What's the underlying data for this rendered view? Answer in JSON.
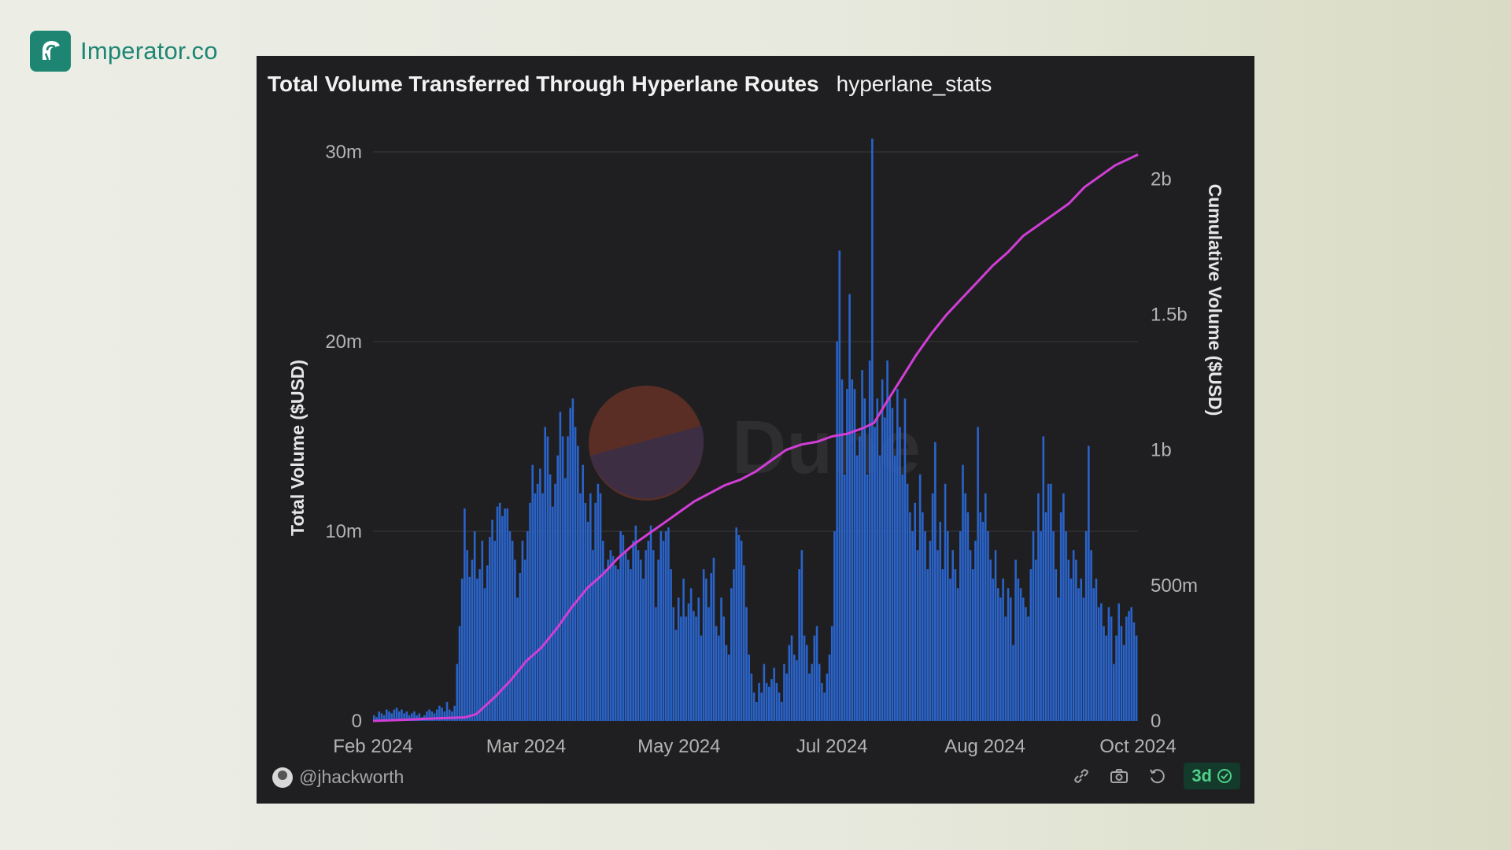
{
  "brand": {
    "name": "Imperator.co",
    "color": "#1e8573"
  },
  "header": {
    "title": "Total Volume Transferred Through Hyperlane Routes",
    "subtitle": "hyperlane_stats"
  },
  "watermark": {
    "text": "Dune"
  },
  "footer": {
    "author": "@jhackworth",
    "refresh_age": "3d",
    "icons": [
      "link-icon",
      "camera-icon",
      "refresh-icon",
      "check-circle-icon"
    ]
  },
  "chart_data": {
    "type": "bar",
    "title": "Total Volume Transferred Through Hyperlane Routes",
    "x_ticks": [
      "Feb 2024",
      "Mar 2024",
      "May 2024",
      "Jul 2024",
      "Aug 2024",
      "Oct 2024"
    ],
    "ylabel": "Total Volume ($USD)",
    "y_ticks": [
      "0",
      "10m",
      "20m",
      "30m"
    ],
    "ylim": [
      0,
      30000000
    ],
    "y2label": "Cumulative Volume ($USD)",
    "y2_ticks": [
      "0",
      "500m",
      "1b",
      "1.5b",
      "2b"
    ],
    "y2lim": [
      0,
      2100000000
    ],
    "grid": true,
    "colors": {
      "bars": "#2a63c9",
      "line": "#d13ed6",
      "grid": "#3a3a3d",
      "tick": "#b3b3b3",
      "axis_label": "#e6e6e6"
    },
    "series": [
      {
        "type": "bar",
        "axis": "left",
        "values": [
          300000,
          200000,
          500000,
          400000,
          300000,
          600000,
          500000,
          400000,
          600000,
          700000,
          500000,
          600000,
          400000,
          500000,
          300000,
          400000,
          500000,
          300000,
          400000,
          200000,
          300000,
          500000,
          600000,
          500000,
          400000,
          600000,
          800000,
          700000,
          500000,
          1000000,
          600000,
          500000,
          800000,
          3000000,
          5000000,
          7500000,
          11200000,
          9000000,
          7600000,
          8500000,
          10000000,
          7500000,
          8000000,
          9500000,
          7000000,
          8200000,
          9700000,
          10600000,
          9500000,
          11300000,
          11500000,
          10800000,
          11200000,
          11200000,
          10000000,
          9500000,
          8500000,
          6500000,
          7800000,
          9500000,
          8500000,
          10000000,
          11500000,
          13500000,
          12000000,
          12500000,
          13300000,
          12000000,
          15500000,
          15000000,
          13000000,
          11300000,
          12500000,
          14000000,
          16300000,
          15000000,
          12800000,
          15000000,
          16500000,
          17000000,
          15500000,
          14500000,
          12000000,
          13500000,
          11500000,
          10500000,
          12000000,
          9000000,
          11500000,
          12500000,
          12000000,
          9500000,
          8000000,
          8500000,
          9000000,
          8700000,
          8200000,
          8000000,
          10000000,
          9800000,
          9000000,
          8500000,
          8000000,
          9500000,
          10300000,
          9000000,
          8500000,
          7500000,
          9000000,
          9500000,
          10300000,
          9000000,
          6000000,
          8500000,
          10000000,
          9500000,
          10000000,
          10200000,
          8000000,
          6000000,
          4800000,
          6500000,
          5500000,
          7500000,
          5500000,
          6200000,
          7000000,
          5800000,
          5500000,
          6500000,
          4500000,
          8000000,
          7500000,
          6000000,
          7800000,
          8600000,
          5000000,
          4500000,
          6500000,
          5500000,
          4000000,
          3500000,
          7000000,
          8000000,
          10200000,
          9800000,
          9500000,
          8200000,
          6000000,
          3500000,
          2500000,
          1500000,
          1000000,
          2000000,
          1500000,
          3000000,
          2000000,
          1800000,
          2200000,
          2800000,
          2000000,
          1500000,
          1000000,
          3000000,
          2500000,
          4000000,
          4500000,
          3500000,
          3200000,
          8000000,
          9000000,
          4500000,
          4000000,
          2500000,
          3000000,
          4500000,
          5000000,
          3000000,
          2000000,
          1500000,
          2500000,
          3500000,
          5000000,
          10000000,
          20000000,
          24800000,
          18000000,
          13000000,
          17500000,
          22500000,
          18000000,
          17500000,
          14000000,
          15000000,
          18500000,
          17000000,
          13000000,
          19000000,
          30700000,
          15500000,
          17000000,
          14000000,
          18000000,
          16000000,
          19000000,
          17000000,
          16500000,
          14000000,
          17500000,
          15500000,
          13000000,
          17000000,
          12500000,
          11000000,
          10000000,
          11500000,
          9000000,
          13000000,
          11000000,
          10000000,
          8000000,
          9500000,
          12000000,
          14700000,
          9000000,
          10500000,
          8000000,
          12500000,
          10000000,
          7500000,
          9000000,
          8000000,
          7000000,
          10000000,
          13500000,
          12000000,
          11000000,
          9000000,
          8000000,
          9500000,
          15500000,
          11000000,
          10500000,
          12000000,
          10000000,
          8500000,
          7500000,
          9000000,
          7000000,
          6500000,
          7500000,
          5500000,
          7000000,
          6500000,
          4000000,
          8500000,
          7500000,
          7000000,
          6500000,
          6000000,
          5500000,
          8000000,
          10000000,
          8500000,
          12000000,
          10000000,
          15000000,
          11000000,
          12500000,
          12500000,
          10000000,
          8000000,
          6500000,
          11000000,
          12000000,
          10000000,
          8500000,
          7500000,
          9000000,
          8500000,
          7000000,
          7500000,
          6500000,
          10000000,
          14500000,
          9000000,
          7000000,
          7500000,
          6000000,
          6200000,
          5000000,
          4500000,
          6000000,
          5500000,
          3000000,
          4500000,
          6200000,
          5000000,
          4000000,
          5500000,
          5800000,
          6000000,
          5200000,
          4500000
        ]
      },
      {
        "type": "line",
        "axis": "right",
        "points": [
          [
            0,
            0
          ],
          [
            0.04,
            4000000
          ],
          [
            0.08,
            9000000
          ],
          [
            0.12,
            13000000
          ],
          [
            0.135,
            25000000
          ],
          [
            0.16,
            90000000
          ],
          [
            0.18,
            150000000
          ],
          [
            0.2,
            220000000
          ],
          [
            0.22,
            270000000
          ],
          [
            0.24,
            340000000
          ],
          [
            0.26,
            420000000
          ],
          [
            0.28,
            490000000
          ],
          [
            0.3,
            540000000
          ],
          [
            0.32,
            600000000
          ],
          [
            0.34,
            650000000
          ],
          [
            0.36,
            690000000
          ],
          [
            0.38,
            730000000
          ],
          [
            0.4,
            770000000
          ],
          [
            0.42,
            810000000
          ],
          [
            0.44,
            840000000
          ],
          [
            0.46,
            870000000
          ],
          [
            0.48,
            890000000
          ],
          [
            0.5,
            920000000
          ],
          [
            0.52,
            960000000
          ],
          [
            0.54,
            1000000000
          ],
          [
            0.56,
            1020000000
          ],
          [
            0.58,
            1030000000
          ],
          [
            0.6,
            1050000000
          ],
          [
            0.62,
            1060000000
          ],
          [
            0.64,
            1080000000
          ],
          [
            0.655,
            1100000000
          ],
          [
            0.67,
            1170000000
          ],
          [
            0.69,
            1260000000
          ],
          [
            0.71,
            1350000000
          ],
          [
            0.73,
            1430000000
          ],
          [
            0.75,
            1500000000
          ],
          [
            0.77,
            1560000000
          ],
          [
            0.79,
            1620000000
          ],
          [
            0.81,
            1680000000
          ],
          [
            0.83,
            1730000000
          ],
          [
            0.85,
            1790000000
          ],
          [
            0.87,
            1830000000
          ],
          [
            0.89,
            1870000000
          ],
          [
            0.91,
            1910000000
          ],
          [
            0.93,
            1970000000
          ],
          [
            0.95,
            2010000000
          ],
          [
            0.97,
            2050000000
          ],
          [
            0.985,
            2070000000
          ],
          [
            1,
            2090000000
          ]
        ]
      }
    ]
  }
}
